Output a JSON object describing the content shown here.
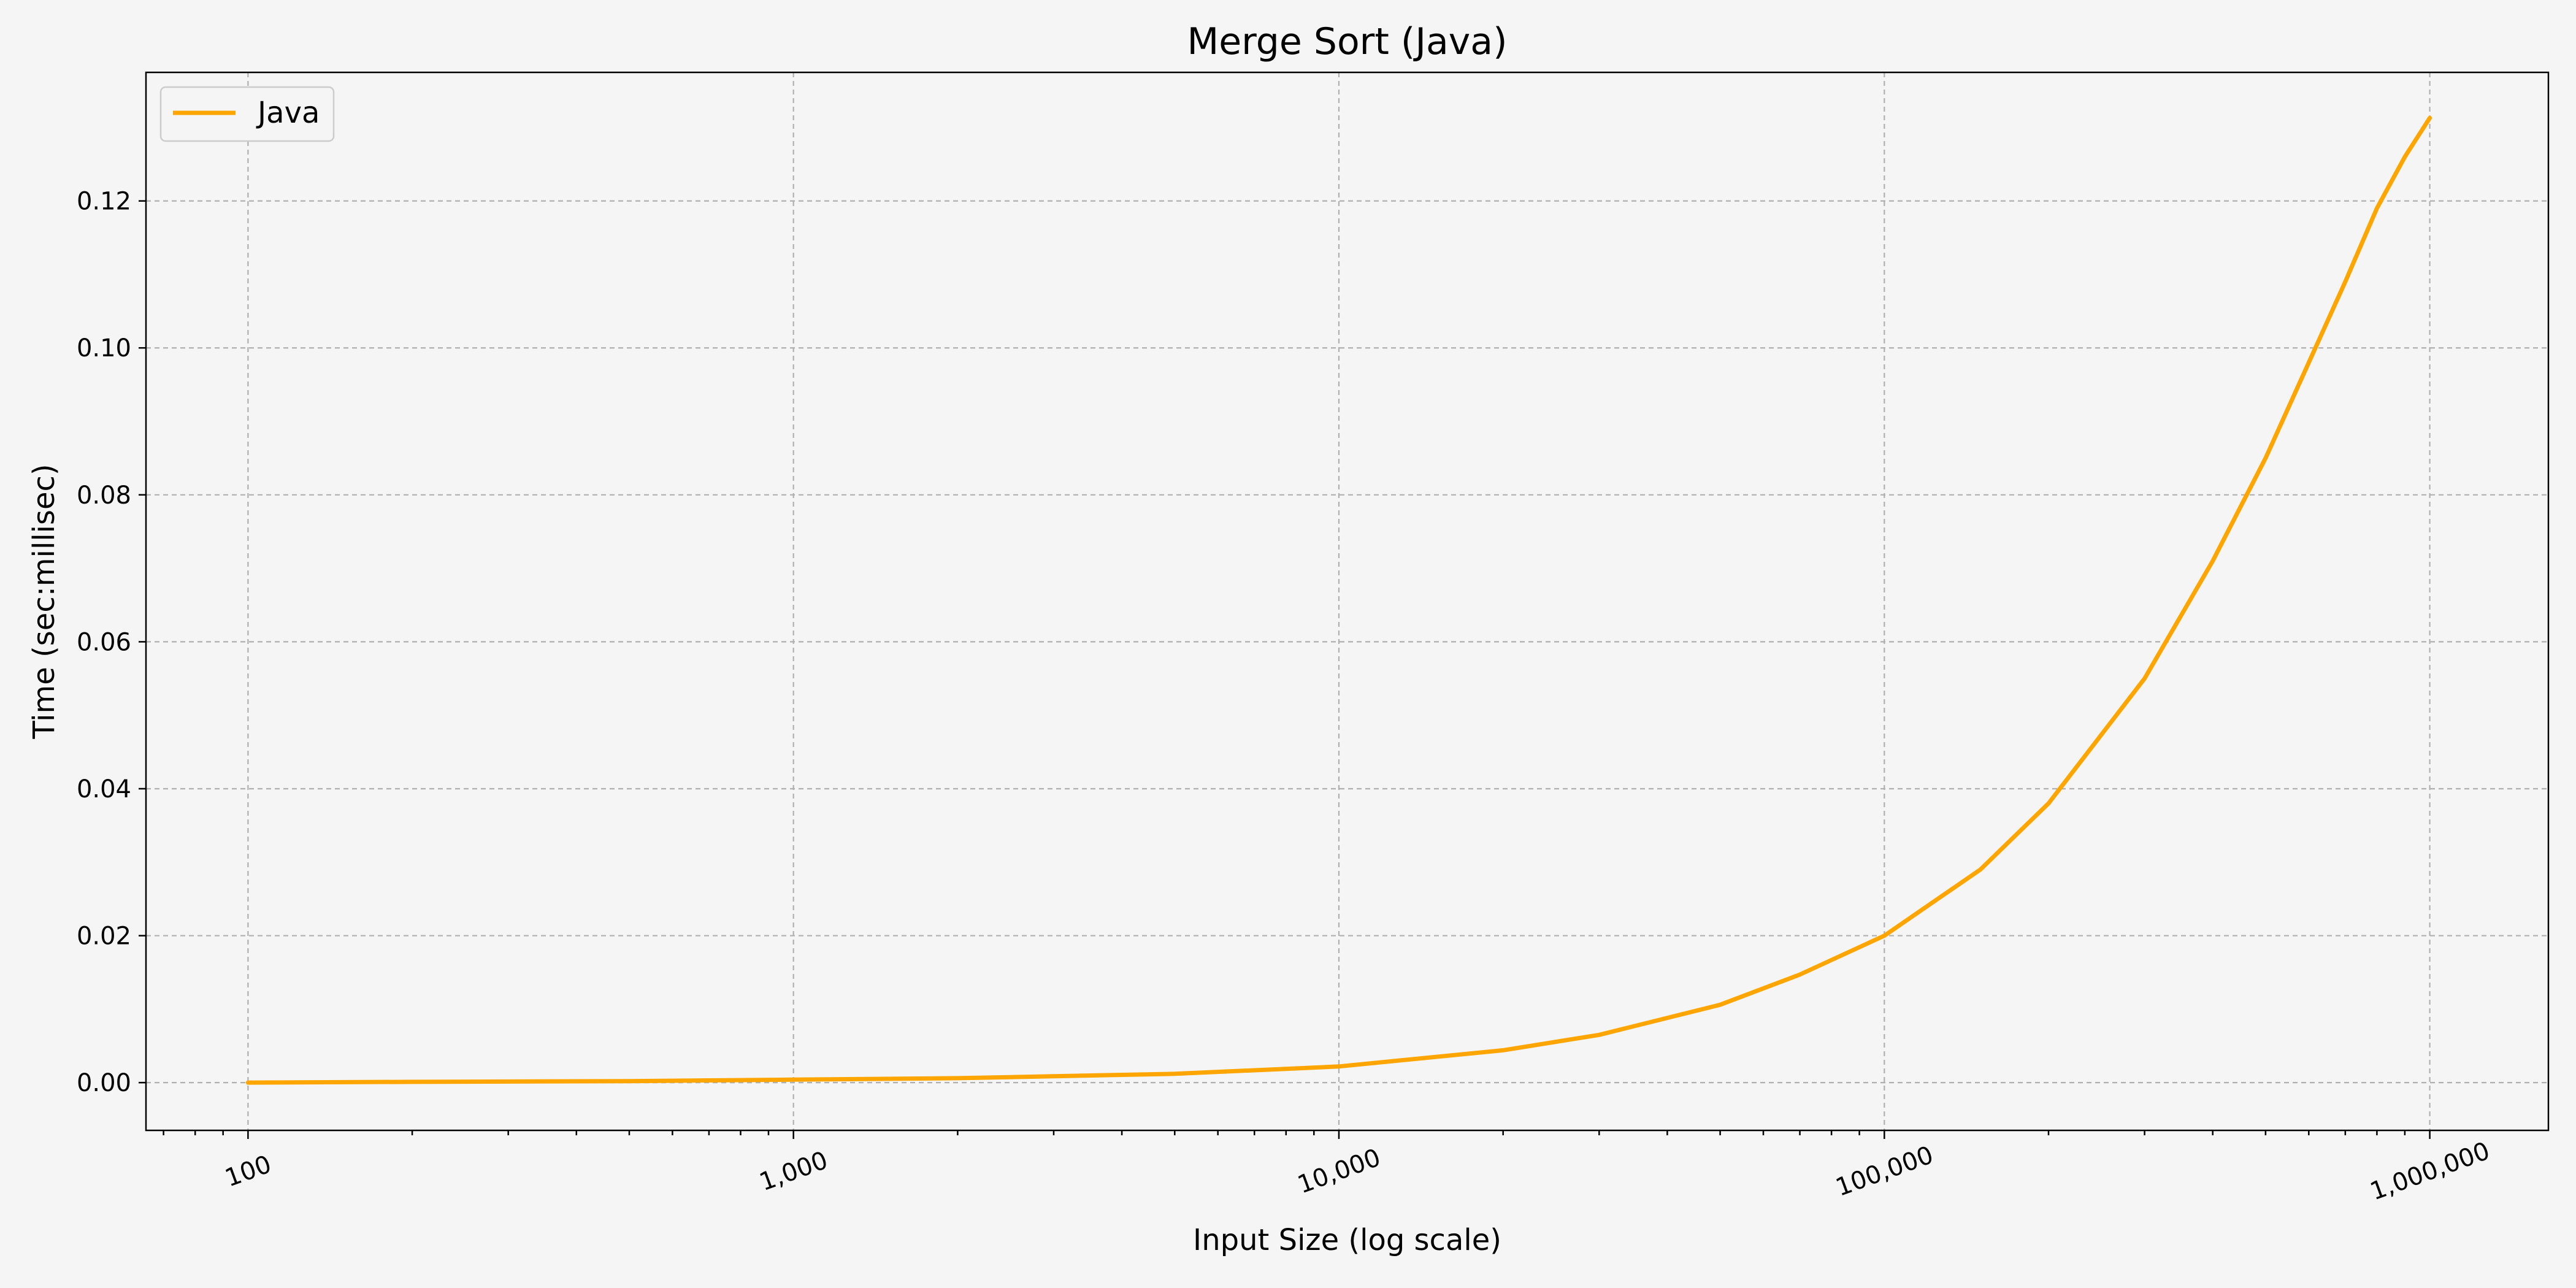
{
  "chart_data": {
    "type": "line",
    "title": "Merge Sort (Java)",
    "xlabel": "Input Size (log scale)",
    "ylabel": "Time (sec:millisec)",
    "x_scale": "log",
    "xlim": [
      65,
      1650000
    ],
    "ylim": [
      -0.0065,
      0.1375
    ],
    "x_ticks": [
      100,
      1000,
      10000,
      100000,
      1000000
    ],
    "x_tick_labels": [
      "100",
      "1,000",
      "10,000",
      "100,000",
      "1,000,000"
    ],
    "y_ticks": [
      0.0,
      0.02,
      0.04,
      0.06,
      0.08,
      0.1,
      0.12
    ],
    "y_tick_labels": [
      "0.00",
      "0.02",
      "0.04",
      "0.06",
      "0.08",
      "0.10",
      "0.12"
    ],
    "grid": true,
    "legend_position": "top-left",
    "series": [
      {
        "name": "Java",
        "color": "#ffa500",
        "x": [
          100,
          200,
          500,
          1000,
          2000,
          5000,
          10000,
          20000,
          30000,
          50000,
          70000,
          100000,
          150000,
          200000,
          300000,
          400000,
          500000,
          600000,
          700000,
          800000,
          900000,
          1000000
        ],
        "y": [
          0.0,
          0.0001,
          0.0002,
          0.0004,
          0.0006,
          0.0012,
          0.0022,
          0.0044,
          0.0065,
          0.0106,
          0.0147,
          0.02,
          0.029,
          0.038,
          0.055,
          0.071,
          0.085,
          0.098,
          0.109,
          0.119,
          0.126,
          0.1313
        ]
      }
    ]
  }
}
